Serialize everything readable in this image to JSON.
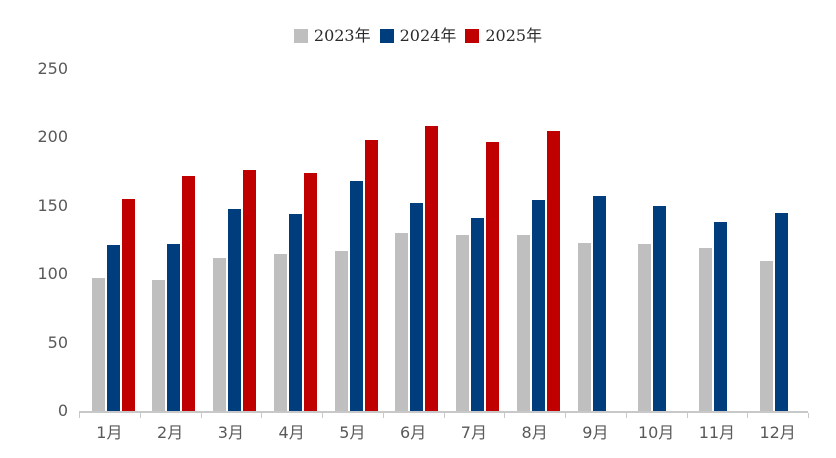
{
  "chart_data": {
    "type": "bar",
    "title": "",
    "xlabel": "",
    "ylabel": "",
    "categories": [
      "1月",
      "2月",
      "3月",
      "4月",
      "5月",
      "6月",
      "7月",
      "8月",
      "9月",
      "10月",
      "11月",
      "12月"
    ],
    "series": [
      {
        "name": "2023年",
        "color": "#bfbfbf",
        "values": [
          97,
          96,
          112,
          115,
          117,
          130,
          129,
          129,
          123,
          122,
          119,
          110
        ]
      },
      {
        "name": "2024年",
        "color": "#003d7d",
        "values": [
          121,
          122,
          148,
          144,
          168,
          152,
          141,
          154,
          157,
          150,
          138,
          145
        ]
      },
      {
        "name": "2025年",
        "color": "#c00000",
        "values": [
          155,
          172,
          176,
          174,
          198,
          208,
          197,
          205,
          null,
          null,
          null,
          null
        ]
      }
    ],
    "ylim": [
      0,
      250
    ],
    "yticks": [
      0,
      50,
      100,
      150,
      200,
      250
    ],
    "grid": false,
    "legend_position": "top"
  },
  "colors": {
    "background": "#ffffff",
    "axis_line": "#c8c8c8",
    "tick_label": "#595959",
    "legend_text": "#2b2b2b"
  }
}
